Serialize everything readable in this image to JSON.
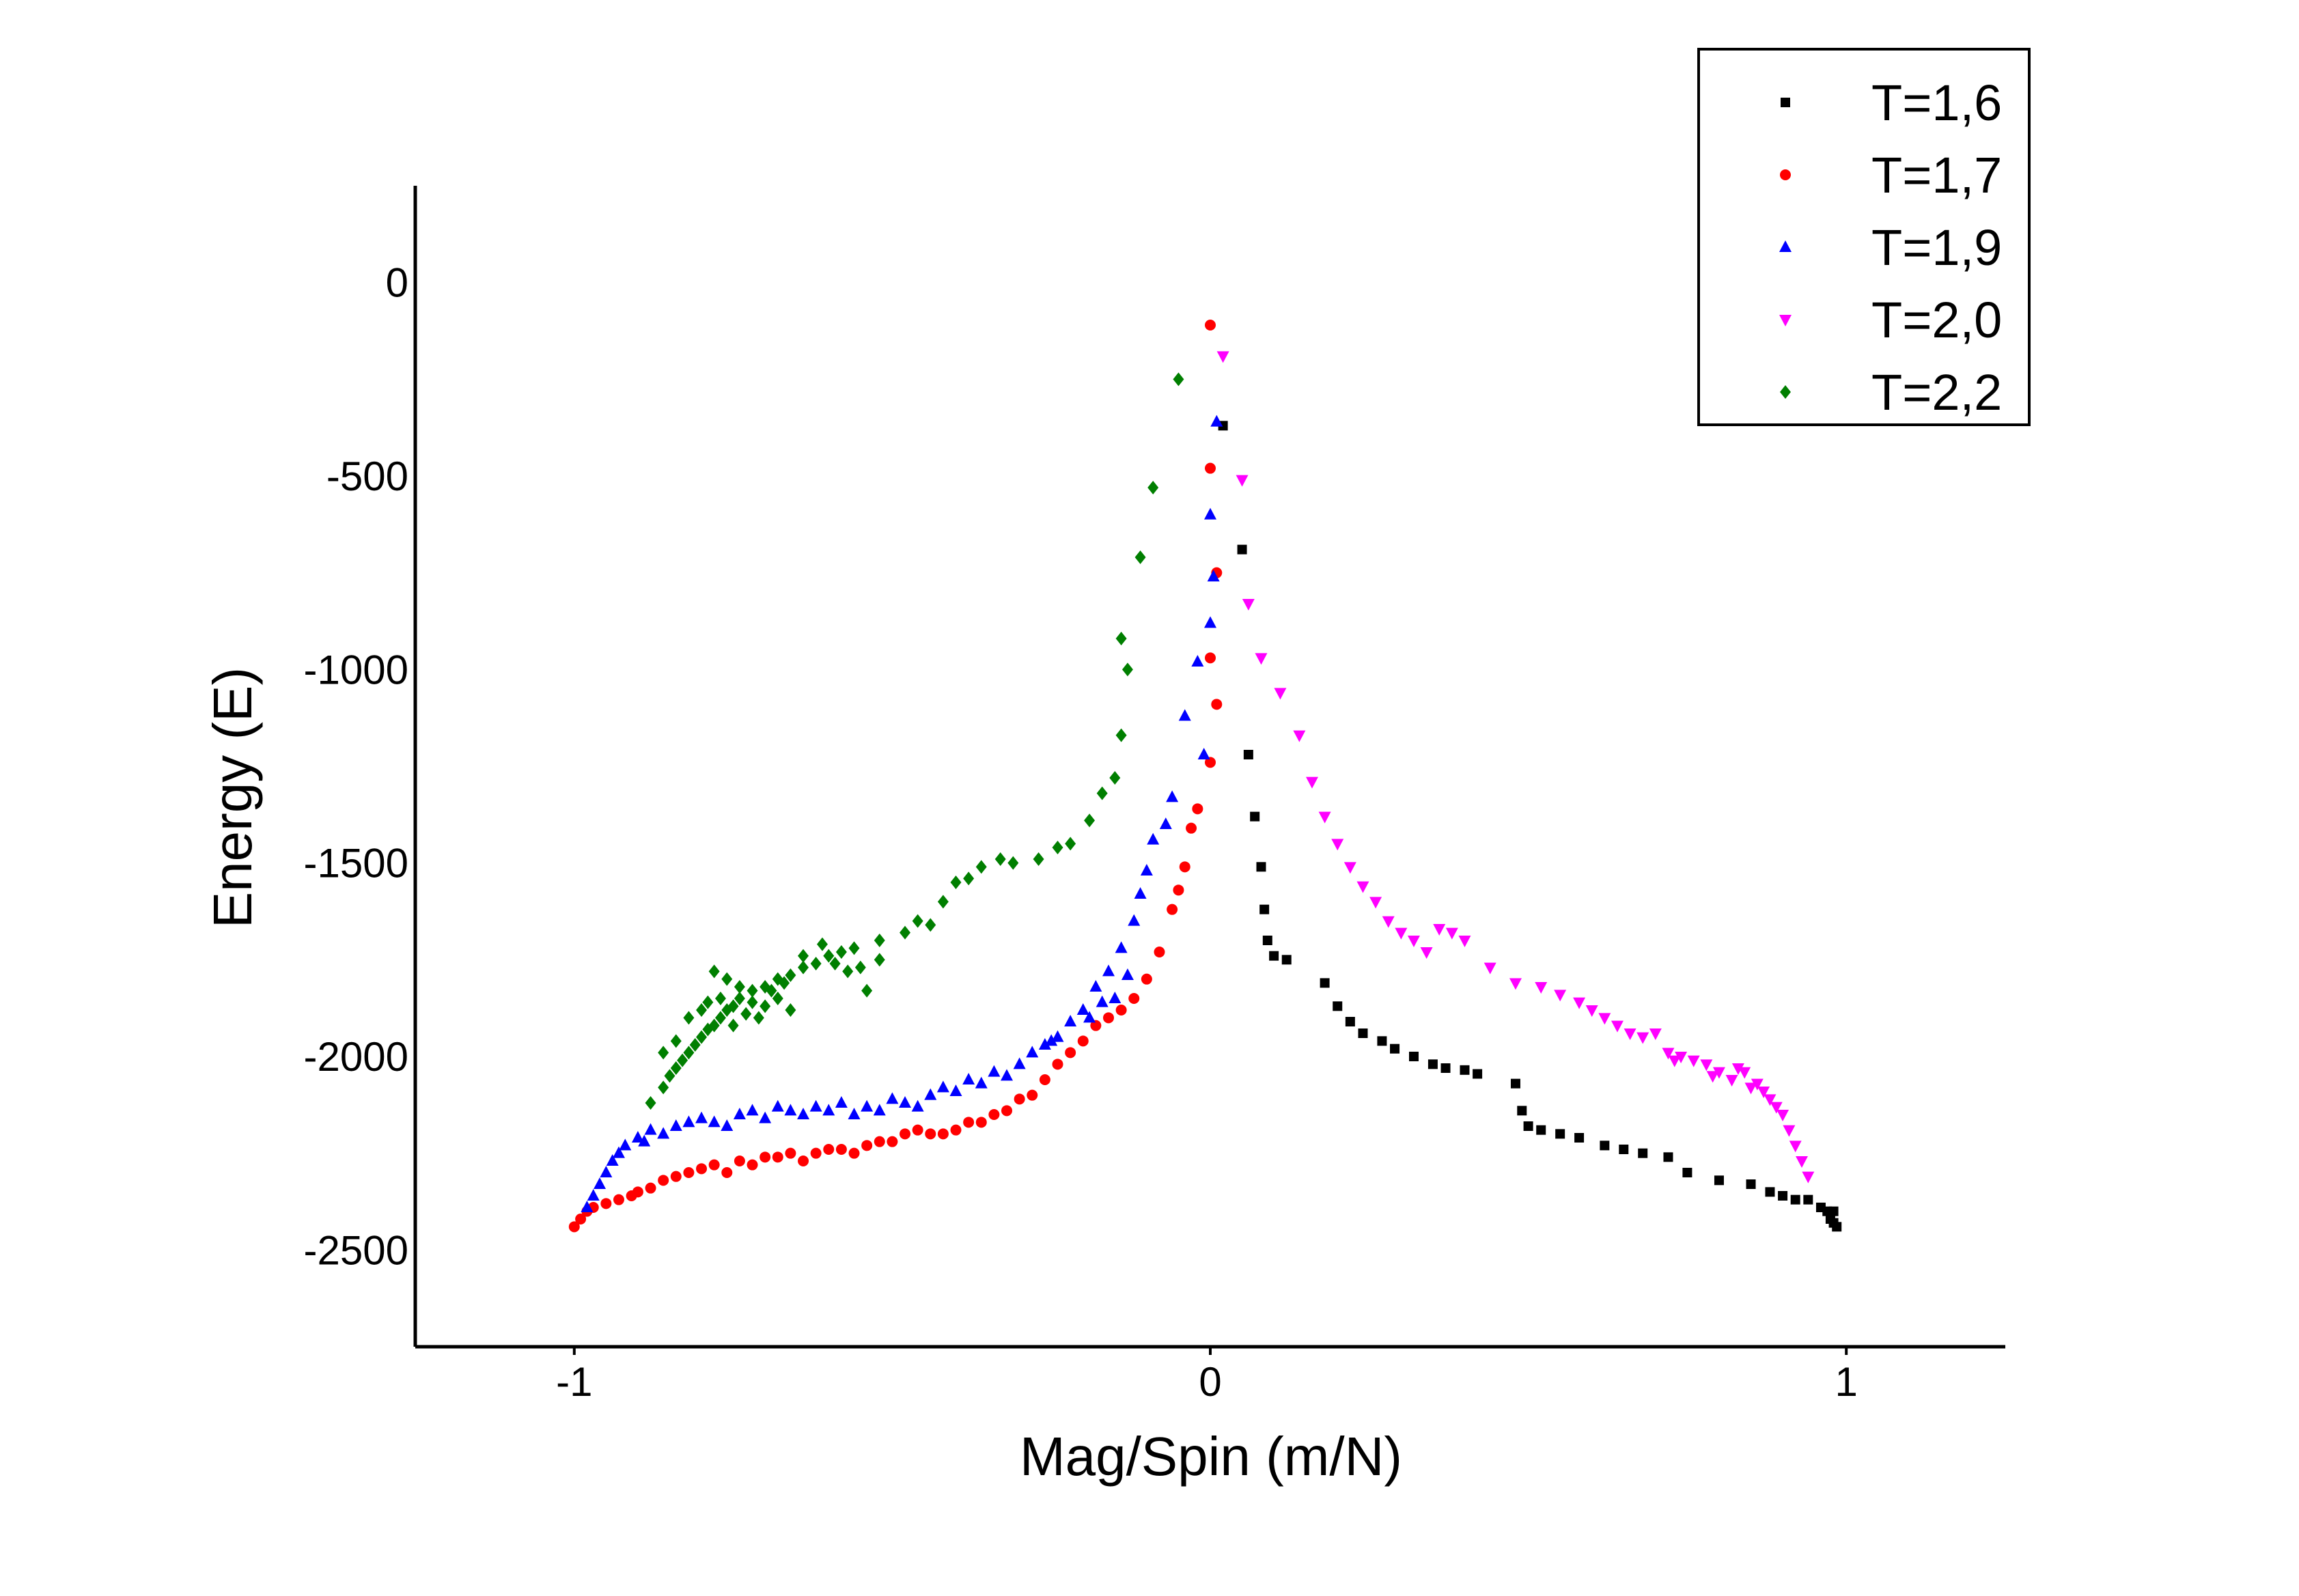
{
  "chart_data": {
    "type": "scatter",
    "title": "",
    "xlabel": "Mag/Spin (m/N)",
    "ylabel": "Energy (E)",
    "xlim": [
      -1.25,
      1.25
    ],
    "ylim": [
      -2750,
      250
    ],
    "x_ticks": [
      -1,
      0,
      1
    ],
    "y_ticks": [
      0,
      -500,
      -1000,
      -1500,
      -2000,
      -2500
    ],
    "grid": false,
    "legend_position": "top-right",
    "series": [
      {
        "name": "T=1,6",
        "marker": "square",
        "color": "#000000",
        "points": [
          [
            0.02,
            -370
          ],
          [
            0.05,
            -690
          ],
          [
            0.06,
            -1220
          ],
          [
            0.07,
            -1380
          ],
          [
            0.08,
            -1510
          ],
          [
            0.085,
            -1620
          ],
          [
            0.09,
            -1700
          ],
          [
            0.1,
            -1740
          ],
          [
            0.12,
            -1750
          ],
          [
            0.18,
            -1810
          ],
          [
            0.2,
            -1870
          ],
          [
            0.22,
            -1910
          ],
          [
            0.24,
            -1940
          ],
          [
            0.27,
            -1960
          ],
          [
            0.29,
            -1980
          ],
          [
            0.32,
            -2000
          ],
          [
            0.35,
            -2020
          ],
          [
            0.37,
            -2030
          ],
          [
            0.4,
            -2035
          ],
          [
            0.42,
            -2045
          ],
          [
            0.48,
            -2070
          ],
          [
            0.49,
            -2140
          ],
          [
            0.5,
            -2180
          ],
          [
            0.52,
            -2190
          ],
          [
            0.55,
            -2200
          ],
          [
            0.58,
            -2210
          ],
          [
            0.62,
            -2230
          ],
          [
            0.65,
            -2240
          ],
          [
            0.68,
            -2250
          ],
          [
            0.72,
            -2260
          ],
          [
            0.75,
            -2300
          ],
          [
            0.8,
            -2320
          ],
          [
            0.85,
            -2330
          ],
          [
            0.88,
            -2350
          ],
          [
            0.9,
            -2360
          ],
          [
            0.92,
            -2370
          ],
          [
            0.94,
            -2370
          ],
          [
            0.96,
            -2390
          ],
          [
            0.97,
            -2400
          ],
          [
            0.975,
            -2420
          ],
          [
            0.98,
            -2430
          ],
          [
            0.985,
            -2440
          ],
          [
            0.98,
            -2400
          ]
        ]
      },
      {
        "name": "T=1,7",
        "marker": "circle",
        "color": "#ff0000",
        "points": [
          [
            -1.0,
            -2440
          ],
          [
            -0.99,
            -2420
          ],
          [
            -0.98,
            -2400
          ],
          [
            -0.97,
            -2390
          ],
          [
            -0.95,
            -2380
          ],
          [
            -0.93,
            -2370
          ],
          [
            -0.91,
            -2360
          ],
          [
            -0.9,
            -2350
          ],
          [
            -0.88,
            -2340
          ],
          [
            -0.86,
            -2320
          ],
          [
            -0.84,
            -2310
          ],
          [
            -0.82,
            -2300
          ],
          [
            -0.8,
            -2290
          ],
          [
            -0.78,
            -2280
          ],
          [
            -0.76,
            -2300
          ],
          [
            -0.74,
            -2270
          ],
          [
            -0.72,
            -2280
          ],
          [
            -0.7,
            -2260
          ],
          [
            -0.68,
            -2260
          ],
          [
            -0.66,
            -2250
          ],
          [
            -0.64,
            -2270
          ],
          [
            -0.62,
            -2250
          ],
          [
            -0.6,
            -2240
          ],
          [
            -0.58,
            -2240
          ],
          [
            -0.56,
            -2250
          ],
          [
            -0.54,
            -2230
          ],
          [
            -0.52,
            -2220
          ],
          [
            -0.5,
            -2220
          ],
          [
            -0.48,
            -2200
          ],
          [
            -0.46,
            -2190
          ],
          [
            -0.44,
            -2200
          ],
          [
            -0.42,
            -2200
          ],
          [
            -0.4,
            -2190
          ],
          [
            -0.38,
            -2170
          ],
          [
            -0.36,
            -2170
          ],
          [
            -0.34,
            -2150
          ],
          [
            -0.32,
            -2140
          ],
          [
            -0.3,
            -2110
          ],
          [
            -0.28,
            -2100
          ],
          [
            -0.26,
            -2060
          ],
          [
            -0.24,
            -2020
          ],
          [
            -0.22,
            -1990
          ],
          [
            -0.2,
            -1960
          ],
          [
            -0.18,
            -1920
          ],
          [
            -0.16,
            -1900
          ],
          [
            -0.14,
            -1880
          ],
          [
            -0.12,
            -1850
          ],
          [
            -0.1,
            -1800
          ],
          [
            -0.08,
            -1730
          ],
          [
            -0.06,
            -1620
          ],
          [
            -0.05,
            -1570
          ],
          [
            -0.04,
            -1510
          ],
          [
            -0.03,
            -1410
          ],
          [
            -0.02,
            -1360
          ],
          [
            0.0,
            -1240
          ],
          [
            0.01,
            -1090
          ],
          [
            0.0,
            -970
          ],
          [
            0.01,
            -750
          ],
          [
            0.0,
            -480
          ],
          [
            0.0,
            -110
          ]
        ]
      },
      {
        "name": "T=1,9",
        "marker": "triangle-up",
        "color": "#0000ff",
        "points": [
          [
            -0.98,
            -2390
          ],
          [
            -0.97,
            -2360
          ],
          [
            -0.96,
            -2330
          ],
          [
            -0.95,
            -2300
          ],
          [
            -0.94,
            -2270
          ],
          [
            -0.93,
            -2250
          ],
          [
            -0.92,
            -2230
          ],
          [
            -0.9,
            -2210
          ],
          [
            -0.89,
            -2220
          ],
          [
            -0.88,
            -2190
          ],
          [
            -0.86,
            -2200
          ],
          [
            -0.84,
            -2180
          ],
          [
            -0.82,
            -2170
          ],
          [
            -0.8,
            -2160
          ],
          [
            -0.78,
            -2170
          ],
          [
            -0.76,
            -2180
          ],
          [
            -0.74,
            -2150
          ],
          [
            -0.72,
            -2140
          ],
          [
            -0.7,
            -2160
          ],
          [
            -0.68,
            -2130
          ],
          [
            -0.66,
            -2140
          ],
          [
            -0.64,
            -2150
          ],
          [
            -0.62,
            -2130
          ],
          [
            -0.6,
            -2140
          ],
          [
            -0.58,
            -2120
          ],
          [
            -0.56,
            -2150
          ],
          [
            -0.54,
            -2130
          ],
          [
            -0.52,
            -2140
          ],
          [
            -0.5,
            -2110
          ],
          [
            -0.48,
            -2120
          ],
          [
            -0.46,
            -2130
          ],
          [
            -0.44,
            -2100
          ],
          [
            -0.42,
            -2080
          ],
          [
            -0.4,
            -2090
          ],
          [
            -0.38,
            -2060
          ],
          [
            -0.36,
            -2070
          ],
          [
            -0.34,
            -2040
          ],
          [
            -0.32,
            -2050
          ],
          [
            -0.3,
            -2020
          ],
          [
            -0.28,
            -1990
          ],
          [
            -0.26,
            -1970
          ],
          [
            -0.24,
            -1950
          ],
          [
            -0.22,
            -1910
          ],
          [
            -0.2,
            -1880
          ],
          [
            -0.18,
            -1820
          ],
          [
            -0.16,
            -1780
          ],
          [
            -0.14,
            -1720
          ],
          [
            -0.12,
            -1650
          ],
          [
            -0.11,
            -1580
          ],
          [
            -0.1,
            -1520
          ],
          [
            -0.09,
            -1440
          ],
          [
            -0.06,
            -1330
          ],
          [
            -0.04,
            -1120
          ],
          [
            -0.02,
            -980
          ],
          [
            0.0,
            -880
          ],
          [
            0.0,
            -600
          ],
          [
            0.01,
            -360
          ],
          [
            0.005,
            -760
          ],
          [
            -0.01,
            -1220
          ],
          [
            -0.07,
            -1400
          ],
          [
            -0.13,
            -1790
          ],
          [
            -0.15,
            -1850
          ],
          [
            -0.17,
            -1860
          ],
          [
            -0.19,
            -1900
          ],
          [
            -0.25,
            -1960
          ]
        ]
      },
      {
        "name": "T=2,0",
        "marker": "triangle-down",
        "color": "#ff00ff",
        "points": [
          [
            0.02,
            -190
          ],
          [
            0.05,
            -510
          ],
          [
            0.06,
            -830
          ],
          [
            0.08,
            -970
          ],
          [
            0.11,
            -1060
          ],
          [
            0.14,
            -1170
          ],
          [
            0.16,
            -1290
          ],
          [
            0.18,
            -1380
          ],
          [
            0.2,
            -1450
          ],
          [
            0.22,
            -1510
          ],
          [
            0.24,
            -1560
          ],
          [
            0.26,
            -1600
          ],
          [
            0.28,
            -1650
          ],
          [
            0.3,
            -1680
          ],
          [
            0.32,
            -1700
          ],
          [
            0.34,
            -1730
          ],
          [
            0.36,
            -1670
          ],
          [
            0.38,
            -1680
          ],
          [
            0.4,
            -1700
          ],
          [
            0.44,
            -1770
          ],
          [
            0.48,
            -1810
          ],
          [
            0.52,
            -1820
          ],
          [
            0.55,
            -1840
          ],
          [
            0.58,
            -1860
          ],
          [
            0.6,
            -1880
          ],
          [
            0.62,
            -1900
          ],
          [
            0.64,
            -1920
          ],
          [
            0.66,
            -1940
          ],
          [
            0.68,
            -1950
          ],
          [
            0.7,
            -1940
          ],
          [
            0.72,
            -1990
          ],
          [
            0.74,
            -2000
          ],
          [
            0.76,
            -2010
          ],
          [
            0.78,
            -2020
          ],
          [
            0.8,
            -2040
          ],
          [
            0.82,
            -2060
          ],
          [
            0.84,
            -2040
          ],
          [
            0.86,
            -2070
          ],
          [
            0.87,
            -2090
          ],
          [
            0.88,
            -2110
          ],
          [
            0.89,
            -2130
          ],
          [
            0.9,
            -2150
          ],
          [
            0.91,
            -2190
          ],
          [
            0.92,
            -2230
          ],
          [
            0.93,
            -2270
          ],
          [
            0.94,
            -2310
          ],
          [
            0.85,
            -2080
          ],
          [
            0.83,
            -2030
          ],
          [
            0.79,
            -2050
          ],
          [
            0.73,
            -2010
          ]
        ]
      },
      {
        "name": "T=2,2",
        "marker": "diamond",
        "color": "#007f00",
        "points": [
          [
            -0.05,
            -250
          ],
          [
            -0.09,
            -530
          ],
          [
            -0.11,
            -710
          ],
          [
            -0.14,
            -920
          ],
          [
            -0.13,
            -1000
          ],
          [
            -0.14,
            -1170
          ],
          [
            -0.15,
            -1280
          ],
          [
            -0.17,
            -1320
          ],
          [
            -0.19,
            -1390
          ],
          [
            -0.22,
            -1450
          ],
          [
            -0.24,
            -1460
          ],
          [
            -0.27,
            -1490
          ],
          [
            -0.31,
            -1500
          ],
          [
            -0.33,
            -1490
          ],
          [
            -0.36,
            -1510
          ],
          [
            -0.38,
            -1540
          ],
          [
            -0.4,
            -1550
          ],
          [
            -0.42,
            -1600
          ],
          [
            -0.44,
            -1660
          ],
          [
            -0.46,
            -1650
          ],
          [
            -0.48,
            -1680
          ],
          [
            -0.52,
            -1700
          ],
          [
            -0.56,
            -1720
          ],
          [
            -0.58,
            -1730
          ],
          [
            -0.6,
            -1740
          ],
          [
            -0.62,
            -1760
          ],
          [
            -0.64,
            -1770
          ],
          [
            -0.66,
            -1790
          ],
          [
            -0.68,
            -1800
          ],
          [
            -0.7,
            -1820
          ],
          [
            -0.72,
            -1830
          ],
          [
            -0.74,
            -1850
          ],
          [
            -0.75,
            -1870
          ],
          [
            -0.76,
            -1880
          ],
          [
            -0.77,
            -1900
          ],
          [
            -0.78,
            -1920
          ],
          [
            -0.79,
            -1930
          ],
          [
            -0.8,
            -1950
          ],
          [
            -0.81,
            -1970
          ],
          [
            -0.82,
            -1990
          ],
          [
            -0.83,
            -2010
          ],
          [
            -0.84,
            -2030
          ],
          [
            -0.85,
            -2050
          ],
          [
            -0.86,
            -2080
          ],
          [
            -0.88,
            -2120
          ],
          [
            -0.78,
            -1780
          ],
          [
            -0.76,
            -1800
          ],
          [
            -0.74,
            -1820
          ],
          [
            -0.72,
            -1860
          ],
          [
            -0.7,
            -1870
          ],
          [
            -0.68,
            -1850
          ],
          [
            -0.66,
            -1880
          ],
          [
            -0.8,
            -1880
          ],
          [
            -0.82,
            -1900
          ],
          [
            -0.84,
            -1960
          ],
          [
            -0.86,
            -1990
          ],
          [
            -0.79,
            -1860
          ],
          [
            -0.77,
            -1850
          ],
          [
            -0.75,
            -1920
          ],
          [
            -0.73,
            -1890
          ],
          [
            -0.71,
            -1900
          ],
          [
            -0.69,
            -1830
          ],
          [
            -0.67,
            -1810
          ],
          [
            -0.64,
            -1740
          ],
          [
            -0.61,
            -1710
          ],
          [
            -0.59,
            -1760
          ],
          [
            -0.57,
            -1780
          ],
          [
            -0.55,
            -1770
          ],
          [
            -0.54,
            -1830
          ],
          [
            -0.52,
            -1750
          ]
        ]
      }
    ]
  }
}
